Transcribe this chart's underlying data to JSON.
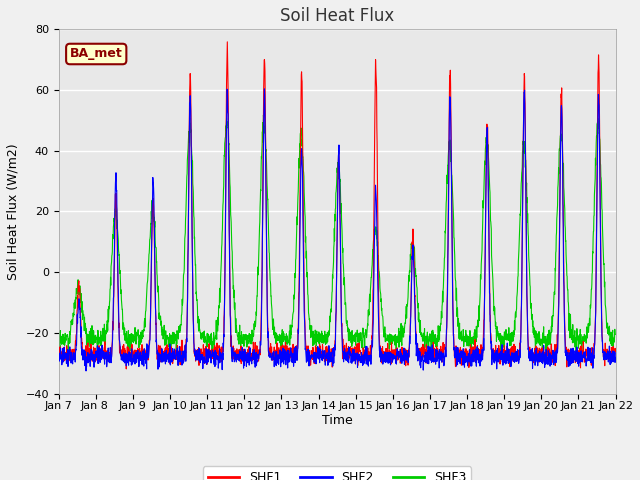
{
  "title": "Soil Heat Flux",
  "xlabel": "Time",
  "ylabel": "Soil Heat Flux (W/m2)",
  "ylim": [
    -40,
    80
  ],
  "background_color": "#e8e8e8",
  "fig_background": "#f0f0f0",
  "grid_color": "#ffffff",
  "annotation_text": "BA_met",
  "annotation_bg": "#ffffcc",
  "annotation_border": "#8B0000",
  "colors": {
    "SHF1": "#ff0000",
    "SHF2": "#0000ff",
    "SHF3": "#00cc00"
  },
  "tick_labels": [
    "Jan 7",
    "Jan 8 ",
    "Jan 9",
    "Jan 10",
    "Jan 11",
    "Jan 12",
    "Jan 13",
    "Jan 14",
    "Jan 15",
    "Jan 16",
    "Jan 17",
    "Jan 18",
    "Jan 19",
    "Jan 20",
    "Jan 21",
    "Jan 22"
  ],
  "n_days": 15,
  "pts_per_day": 144,
  "title_fontsize": 12,
  "axis_label_fontsize": 9,
  "tick_fontsize": 8
}
